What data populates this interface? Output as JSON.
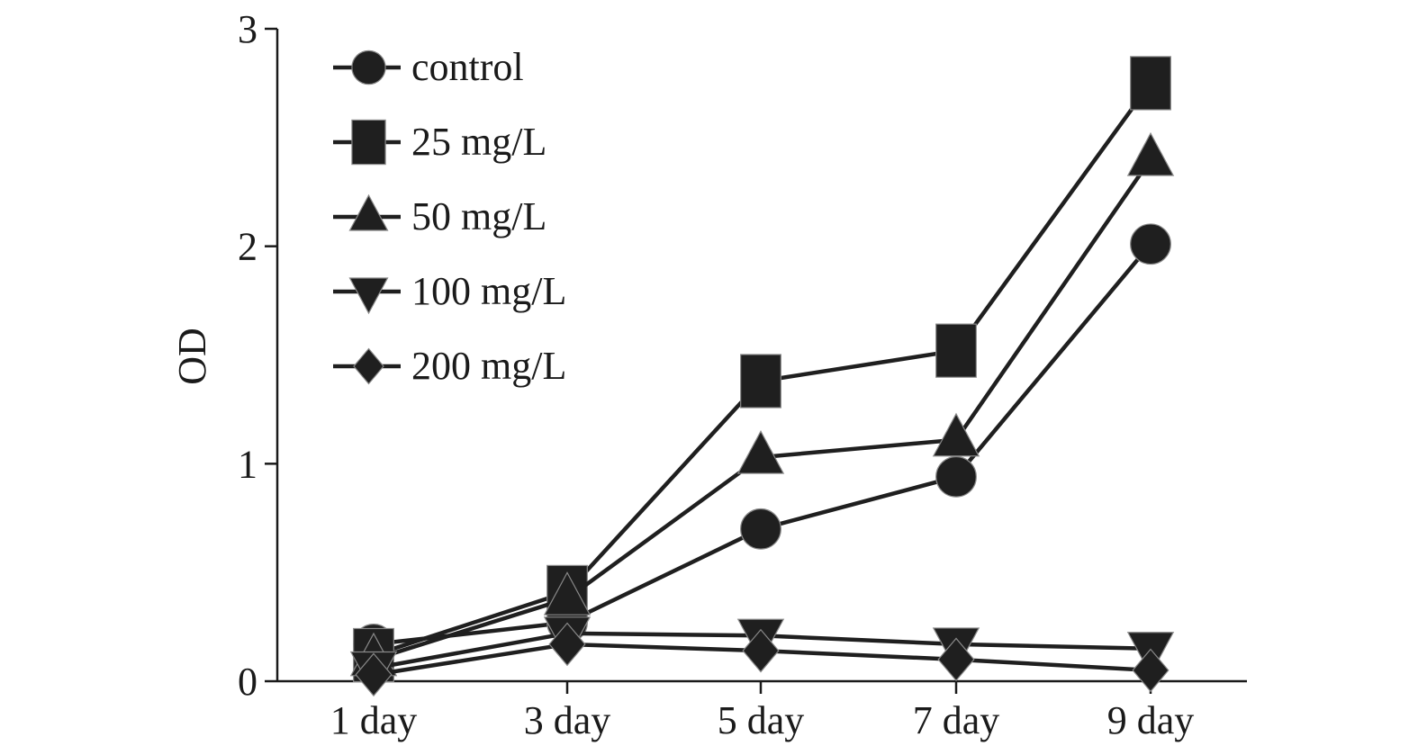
{
  "chart_data": {
    "type": "line",
    "title": "",
    "xlabel": "",
    "ylabel": "OD",
    "ylim": [
      0,
      3
    ],
    "yticks": [
      0,
      1,
      2,
      3
    ],
    "categories": [
      "1 day",
      "3 day",
      "5 day",
      "7 day",
      "9 day"
    ],
    "grid": false,
    "legend_position": "top-left",
    "series": [
      {
        "name": "control",
        "marker": "circle",
        "values": [
          0.17,
          0.27,
          0.7,
          0.94,
          2.01
        ]
      },
      {
        "name": "25 mg/L",
        "marker": "square",
        "values": [
          0.12,
          0.41,
          1.38,
          1.52,
          2.75
        ]
      },
      {
        "name": "50 mg/L",
        "marker": "triangle-up",
        "values": [
          0.1,
          0.38,
          1.03,
          1.11,
          2.4
        ]
      },
      {
        "name": "100 mg/L",
        "marker": "triangle-down",
        "values": [
          0.06,
          0.22,
          0.21,
          0.17,
          0.15
        ]
      },
      {
        "name": "200 mg/L",
        "marker": "diamond",
        "values": [
          0.03,
          0.17,
          0.14,
          0.1,
          0.05
        ]
      }
    ]
  },
  "colors": {
    "line": "#1f1f1f",
    "axis": "#1a1a1a"
  }
}
